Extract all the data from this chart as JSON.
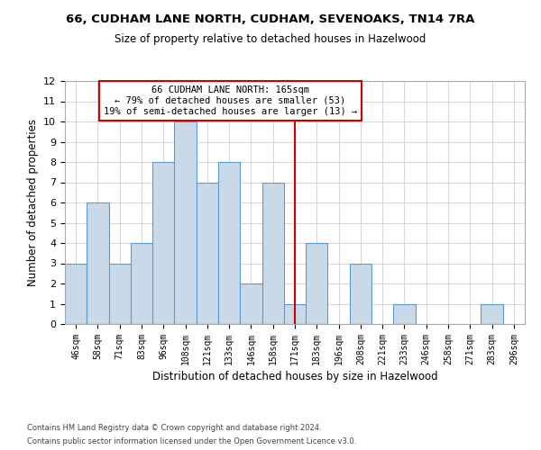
{
  "title1": "66, CUDHAM LANE NORTH, CUDHAM, SEVENOAKS, TN14 7RA",
  "title2": "Size of property relative to detached houses in Hazelwood",
  "xlabel": "Distribution of detached houses by size in Hazelwood",
  "ylabel": "Number of detached properties",
  "categories": [
    "46sqm",
    "58sqm",
    "71sqm",
    "83sqm",
    "96sqm",
    "108sqm",
    "121sqm",
    "133sqm",
    "146sqm",
    "158sqm",
    "171sqm",
    "183sqm",
    "196sqm",
    "208sqm",
    "221sqm",
    "233sqm",
    "246sqm",
    "258sqm",
    "271sqm",
    "283sqm",
    "296sqm"
  ],
  "values": [
    3,
    6,
    3,
    4,
    8,
    10,
    7,
    8,
    2,
    7,
    1,
    4,
    0,
    3,
    0,
    1,
    0,
    0,
    0,
    1,
    0
  ],
  "bar_color": "#c9d9e8",
  "bar_edge_color": "#5b9bd5",
  "annotation_text": "66 CUDHAM LANE NORTH: 165sqm\n← 79% of detached houses are smaller (53)\n19% of semi-detached houses are larger (13) →",
  "annotation_box_color": "#ffffff",
  "annotation_box_edge_color": "#cc0000",
  "vline_color": "#cc0000",
  "vline_x_index": 10,
  "footer1": "Contains HM Land Registry data © Crown copyright and database right 2024.",
  "footer2": "Contains public sector information licensed under the Open Government Licence v3.0.",
  "ylim": [
    0,
    12
  ],
  "yticks": [
    0,
    1,
    2,
    3,
    4,
    5,
    6,
    7,
    8,
    9,
    10,
    11,
    12
  ],
  "fig_width": 6.0,
  "fig_height": 5.0,
  "dpi": 100
}
